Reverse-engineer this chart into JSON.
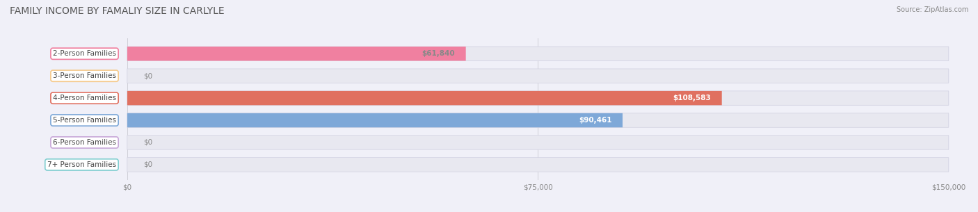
{
  "title": "FAMILY INCOME BY FAMALIY SIZE IN CARLYLE",
  "source": "Source: ZipAtlas.com",
  "categories": [
    "2-Person Families",
    "3-Person Families",
    "4-Person Families",
    "5-Person Families",
    "6-Person Families",
    "7+ Person Families"
  ],
  "values": [
    61840,
    0,
    108583,
    90461,
    0,
    0
  ],
  "bar_colors": [
    "#F080A0",
    "#F5C98A",
    "#E07060",
    "#7EA8D8",
    "#C8A8D8",
    "#80CED0"
  ],
  "label_colors": [
    "#888888",
    "#888888",
    "#ffffff",
    "#ffffff",
    "#888888",
    "#888888"
  ],
  "bg_color": "#F0F0F8",
  "bar_bg_color": "#E8E8F0",
  "xlim": [
    0,
    150000
  ],
  "xticks": [
    0,
    75000,
    150000
  ],
  "xtick_labels": [
    "$0",
    "$75,000",
    "$150,000"
  ],
  "figsize": [
    14.06,
    3.05
  ],
  "dpi": 100,
  "title_fontsize": 10,
  "label_fontsize": 7.5,
  "value_labels": [
    "$61,840",
    "$0",
    "$108,583",
    "$90,461",
    "$0",
    "$0"
  ]
}
